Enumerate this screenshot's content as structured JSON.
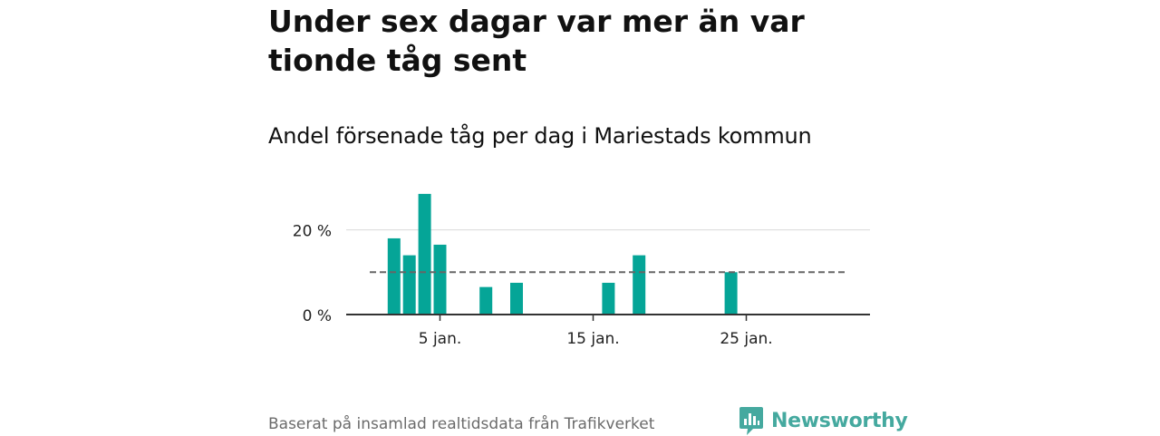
{
  "title": "Under sex dagar var mer än var tionde tåg sent",
  "subtitle": "Andel försenade tåg per dag i Mariestads kommun",
  "source": "Baserat på insamlad realtidsdata från Trafikverket",
  "brand": "Newsworthy",
  "colors": {
    "bar": "#05a597",
    "reference_line": "#666666",
    "brand": "#45a99f"
  },
  "chart_data": {
    "type": "bar",
    "x_unit": "day of January",
    "x": [
      2,
      3,
      4,
      5,
      8,
      10,
      16,
      18,
      24
    ],
    "values": [
      18,
      14,
      28.5,
      16.5,
      6.5,
      7.5,
      7.5,
      14,
      10
    ],
    "reference_line": 10,
    "xticks": [
      {
        "value": 5,
        "label": "5 jan."
      },
      {
        "value": 15,
        "label": "15 jan."
      },
      {
        "value": 25,
        "label": "25 jan."
      }
    ],
    "yticks": [
      {
        "value": 0,
        "label": "0 %"
      },
      {
        "value": 20,
        "label": "20 %"
      }
    ],
    "xlim": [
      1,
      31
    ],
    "ylim": [
      0,
      30
    ],
    "grid": true,
    "xlabel": "",
    "ylabel": ""
  }
}
